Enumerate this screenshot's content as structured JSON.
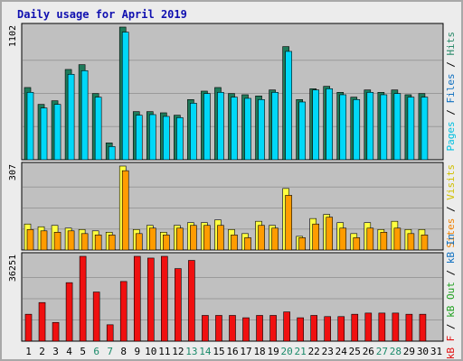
{
  "chart_data": {
    "type": "bar",
    "title": "Daily usage for April 2019",
    "categories": [
      "1",
      "2",
      "3",
      "4",
      "5",
      "6",
      "7",
      "8",
      "9",
      "10",
      "11",
      "12",
      "13",
      "14",
      "15",
      "16",
      "17",
      "18",
      "19",
      "20",
      "21",
      "22",
      "23",
      "24",
      "25",
      "26",
      "27",
      "28",
      "29",
      "30",
      "31"
    ],
    "weekend_days": [
      "6",
      "7",
      "13",
      "14",
      "20",
      "21",
      "27",
      "28"
    ],
    "panels": [
      {
        "id": "top",
        "max_label": "1102",
        "ylim": [
          0,
          1102
        ],
        "series": [
          {
            "name": "Hits",
            "color": "#1e7a5a",
            "values": [
              600,
              460,
              490,
              750,
              790,
              550,
              140,
              1102,
              400,
              400,
              390,
              370,
              500,
              570,
              600,
              550,
              540,
              530,
              580,
              940,
              500,
              590,
              610,
              560,
              520,
              580,
              560,
              580,
              540,
              550,
              null
            ]
          },
          {
            "name": "Files",
            "color": "#00d8f8",
            "values": [
              560,
              430,
              460,
              710,
              740,
              520,
              110,
              1060,
              370,
              375,
              360,
              350,
              470,
              550,
              560,
              520,
              510,
              500,
              560,
              900,
              480,
              580,
              590,
              540,
              500,
              560,
              540,
              550,
              520,
              520,
              null
            ]
          }
        ],
        "axis_labels": [
          {
            "text": "Pages",
            "color": "#00c0e0"
          },
          {
            "text": "Files",
            "color": "#1070c0"
          },
          {
            "text": "Hits",
            "color": "#2a8a6a"
          }
        ]
      },
      {
        "id": "middle",
        "max_label": "307",
        "ylim": [
          0,
          307
        ],
        "series": [
          {
            "name": "Visits",
            "color": "#ffff40",
            "values": [
              95,
              85,
              90,
              80,
              75,
              70,
              65,
              307,
              75,
              90,
              65,
              90,
              100,
              100,
              110,
              75,
              60,
              105,
              90,
              225,
              50,
              115,
              130,
              100,
              60,
              100,
              75,
              105,
              75,
              75,
              null
            ]
          },
          {
            "name": "Sites",
            "color": "#ff9c00",
            "values": [
              75,
              70,
              65,
              70,
              60,
              55,
              55,
              290,
              60,
              80,
              55,
              80,
              90,
              90,
              90,
              55,
              45,
              90,
              80,
              200,
              45,
              95,
              120,
              80,
              45,
              80,
              65,
              80,
              60,
              55,
              null
            ]
          }
        ],
        "axis_labels": [
          {
            "text": "Sites",
            "color": "#f08000"
          },
          {
            "text": "Visits",
            "color": "#d0c000"
          }
        ]
      },
      {
        "id": "bottom",
        "max_label": "36251",
        "ylim": [
          0,
          36251
        ],
        "series": [
          {
            "name": "kB F",
            "color": "#f01010",
            "values": [
              11500,
              16500,
              8000,
              25000,
              36251,
              21000,
              7000,
              25500,
              36251,
              35500,
              36251,
              31000,
              34500,
              11000,
              11000,
              11000,
              10000,
              11000,
              11000,
              12500,
              10000,
              11000,
              10500,
              10500,
              11500,
              12000,
              12000,
              12000,
              11500,
              11500,
              null
            ]
          }
        ],
        "axis_labels": [
          {
            "text": "kB F",
            "color": "#e01010"
          },
          {
            "text": "kB Out",
            "color": "#20a020"
          },
          {
            "text": "kB In",
            "color": "#1070c0"
          }
        ]
      }
    ]
  }
}
